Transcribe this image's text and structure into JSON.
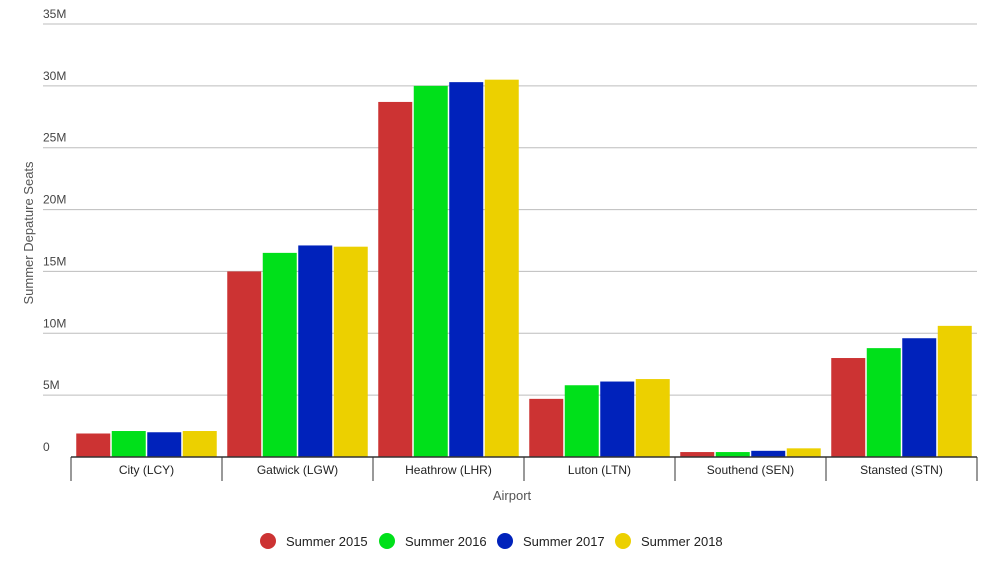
{
  "chart_data": {
    "type": "bar",
    "xlabel": "Airport",
    "ylabel": "Summer Depature Seats",
    "ylim": [
      0,
      35000000
    ],
    "ytick_values": [
      0,
      5000000,
      10000000,
      15000000,
      20000000,
      25000000,
      30000000,
      35000000
    ],
    "ytick_labels": [
      "0",
      "5M",
      "10M",
      "15M",
      "20M",
      "25M",
      "30M",
      "35M"
    ],
    "grid": true,
    "legend_position": "bottom",
    "categories": [
      "City (LCY)",
      "Gatwick (LGW)",
      "Heathrow (LHR)",
      "Luton (LTN)",
      "Southend (SEN)",
      "Stansted (STN)"
    ],
    "series": [
      {
        "name": "Summer 2015",
        "color": "#cc3333",
        "values": [
          1900000,
          15000000,
          28700000,
          4700000,
          400000,
          8000000
        ]
      },
      {
        "name": "Summer 2016",
        "color": "#00e01a",
        "values": [
          2100000,
          16500000,
          30000000,
          5800000,
          400000,
          8800000
        ]
      },
      {
        "name": "Summer 2017",
        "color": "#0022bb",
        "values": [
          2000000,
          17100000,
          30300000,
          6100000,
          500000,
          9600000
        ]
      },
      {
        "name": "Summer 2018",
        "color": "#ecd000",
        "values": [
          2100000,
          17000000,
          30500000,
          6300000,
          700000,
          10600000
        ]
      }
    ]
  }
}
